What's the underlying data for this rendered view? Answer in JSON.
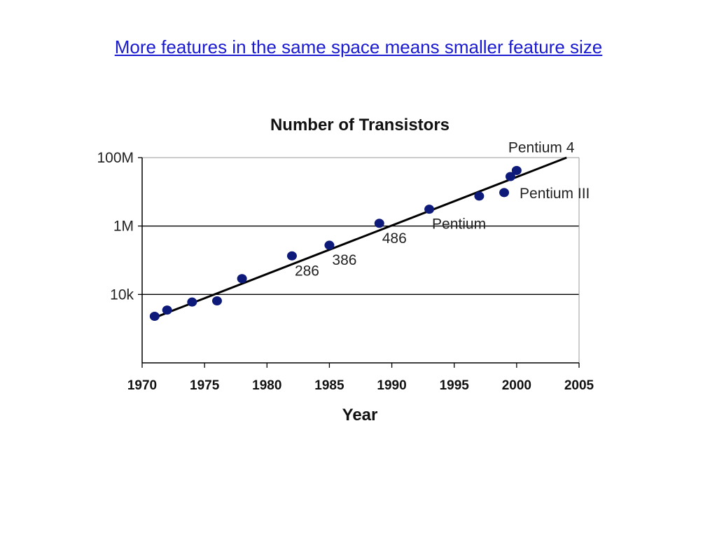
{
  "slide": {
    "title": "More features in the same space means smaller feature size"
  },
  "colors": {
    "title_link": "#1a1ad0",
    "point": "#0d1a7a",
    "trend_line": "#000000",
    "gridline": "#000000"
  },
  "chart_data": {
    "type": "scatter",
    "title": "Number of Transistors",
    "xlabel": "Year",
    "ylabel": "",
    "y_scale": "log",
    "xlim": [
      1970,
      2005
    ],
    "ylim": [
      100,
      100000000
    ],
    "x_ticks": [
      1970,
      1975,
      1980,
      1985,
      1990,
      1995,
      2000,
      2005
    ],
    "y_ticks": [
      {
        "value": 10000,
        "label": "10k"
      },
      {
        "value": 1000000,
        "label": "1M"
      },
      {
        "value": 100000000,
        "label": "100M"
      }
    ],
    "grid": "horizontal",
    "points": [
      {
        "x": 1971,
        "y": 2300
      },
      {
        "x": 1972,
        "y": 3500
      },
      {
        "x": 1974,
        "y": 6000
      },
      {
        "x": 1976,
        "y": 6500
      },
      {
        "x": 1978,
        "y": 29000
      },
      {
        "x": 1982,
        "y": 134000
      },
      {
        "x": 1985,
        "y": 275000
      },
      {
        "x": 1989,
        "y": 1200000
      },
      {
        "x": 1993,
        "y": 3100000
      },
      {
        "x": 1997,
        "y": 7500000
      },
      {
        "x": 1999,
        "y": 9500000
      },
      {
        "x": 1999.5,
        "y": 28000000
      },
      {
        "x": 2000,
        "y": 42000000
      }
    ],
    "trend_line": {
      "x": [
        1971,
        2004
      ],
      "y": [
        2100,
        100000000
      ]
    },
    "annotations": [
      {
        "text": "286",
        "x": 1982,
        "y": 134000,
        "position": "below-right"
      },
      {
        "text": "386",
        "x": 1985,
        "y": 275000,
        "position": "below-right"
      },
      {
        "text": "486",
        "x": 1989,
        "y": 1200000,
        "position": "below-right"
      },
      {
        "text": "Pentium",
        "x": 1993,
        "y": 3100000,
        "position": "below-right"
      },
      {
        "text": "Pentium III",
        "x": 1999,
        "y": 9500000,
        "position": "right"
      },
      {
        "text": "Pentium 4",
        "x": 2000,
        "y": 42000000,
        "position": "above"
      }
    ]
  }
}
